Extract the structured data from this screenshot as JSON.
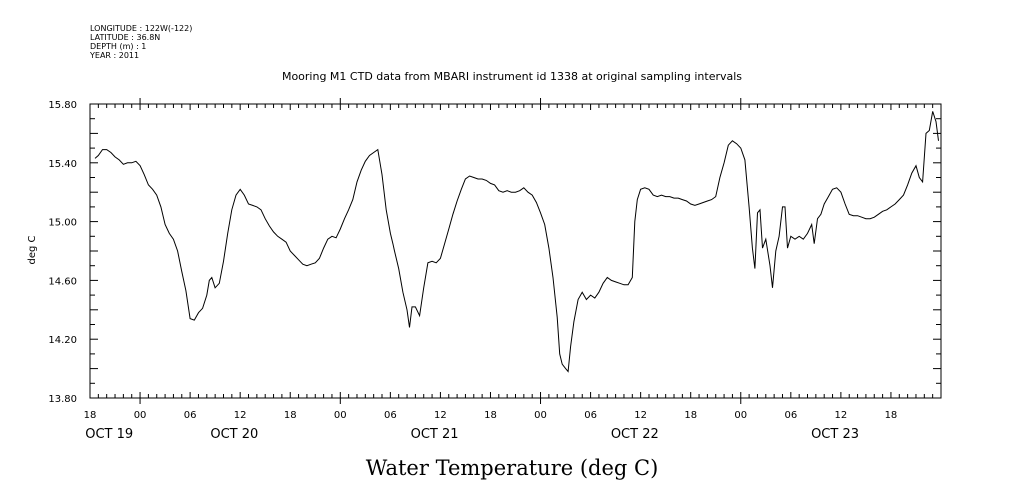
{
  "meta": {
    "longitude": "LONGITUDE : 122W(-122)",
    "latitude": "LATITUDE : 36.8N",
    "depth": "DEPTH (m) : 1",
    "year": "YEAR : 2011"
  },
  "chart_data": {
    "type": "line",
    "title": "Mooring M1 CTD data from MBARI instrument id 1338 at original sampling intervals",
    "xlabel": "Water Temperature (deg C)",
    "ylabel": "deg C",
    "ylim": [
      13.8,
      15.8
    ],
    "y_ticks": [
      "13.80",
      "14.20",
      "14.60",
      "15.00",
      "15.40",
      "15.80"
    ],
    "x_unit": "hours since OCT 18 18:00",
    "x_range": [
      0,
      102
    ],
    "hour_ticks": [
      {
        "h": 0,
        "label": "18"
      },
      {
        "h": 6,
        "label": "00"
      },
      {
        "h": 12,
        "label": "06"
      },
      {
        "h": 18,
        "label": "12"
      },
      {
        "h": 24,
        "label": "18"
      },
      {
        "h": 30,
        "label": "00"
      },
      {
        "h": 36,
        "label": "06"
      },
      {
        "h": 42,
        "label": "12"
      },
      {
        "h": 48,
        "label": "18"
      },
      {
        "h": 54,
        "label": "00"
      },
      {
        "h": 60,
        "label": "06"
      },
      {
        "h": 66,
        "label": "12"
      },
      {
        "h": 72,
        "label": "18"
      },
      {
        "h": 78,
        "label": "00"
      },
      {
        "h": 84,
        "label": "06"
      },
      {
        "h": 90,
        "label": "12"
      },
      {
        "h": 96,
        "label": "18"
      }
    ],
    "date_labels": [
      {
        "h": 2.3,
        "label": "OCT 19"
      },
      {
        "h": 17.3,
        "label": "OCT 20"
      },
      {
        "h": 41.3,
        "label": "OCT 21"
      },
      {
        "h": 65.3,
        "label": "OCT 22"
      },
      {
        "h": 89.3,
        "label": "OCT 23"
      }
    ],
    "grid": false,
    "series": [
      {
        "color": "#000000",
        "points": [
          [
            0.6,
            15.43
          ],
          [
            1.0,
            15.45
          ],
          [
            1.5,
            15.49
          ],
          [
            2.0,
            15.49
          ],
          [
            2.5,
            15.47
          ],
          [
            3.0,
            15.44
          ],
          [
            3.5,
            15.42
          ],
          [
            4.0,
            15.39
          ],
          [
            4.5,
            15.4
          ],
          [
            5.0,
            15.4
          ],
          [
            5.5,
            15.41
          ],
          [
            6.0,
            15.38
          ],
          [
            6.5,
            15.32
          ],
          [
            7.0,
            15.25
          ],
          [
            7.5,
            15.22
          ],
          [
            8.0,
            15.18
          ],
          [
            8.5,
            15.1
          ],
          [
            9.0,
            14.98
          ],
          [
            9.5,
            14.92
          ],
          [
            10.0,
            14.88
          ],
          [
            10.5,
            14.8
          ],
          [
            11.0,
            14.66
          ],
          [
            11.5,
            14.53
          ],
          [
            12.0,
            14.34
          ],
          [
            12.5,
            14.33
          ],
          [
            13.0,
            14.38
          ],
          [
            13.5,
            14.41
          ],
          [
            14.0,
            14.5
          ],
          [
            14.3,
            14.6
          ],
          [
            14.6,
            14.62
          ],
          [
            15.0,
            14.55
          ],
          [
            15.5,
            14.58
          ],
          [
            16.0,
            14.73
          ],
          [
            16.5,
            14.92
          ],
          [
            17.0,
            15.08
          ],
          [
            17.5,
            15.18
          ],
          [
            18.0,
            15.22
          ],
          [
            18.5,
            15.18
          ],
          [
            19.0,
            15.12
          ],
          [
            19.5,
            15.11
          ],
          [
            20.0,
            15.1
          ],
          [
            20.5,
            15.08
          ],
          [
            21.0,
            15.02
          ],
          [
            21.5,
            14.97
          ],
          [
            22.0,
            14.93
          ],
          [
            22.5,
            14.9
          ],
          [
            23.0,
            14.88
          ],
          [
            23.5,
            14.86
          ],
          [
            24.0,
            14.8
          ],
          [
            24.5,
            14.77
          ],
          [
            25.0,
            14.74
          ],
          [
            25.5,
            14.71
          ],
          [
            26.0,
            14.7
          ],
          [
            26.5,
            14.71
          ],
          [
            27.0,
            14.72
          ],
          [
            27.5,
            14.75
          ],
          [
            28.0,
            14.82
          ],
          [
            28.5,
            14.88
          ],
          [
            29.0,
            14.9
          ],
          [
            29.5,
            14.89
          ],
          [
            30.0,
            14.95
          ],
          [
            30.5,
            15.02
          ],
          [
            31.0,
            15.08
          ],
          [
            31.5,
            15.15
          ],
          [
            32.0,
            15.27
          ],
          [
            32.5,
            15.35
          ],
          [
            33.0,
            15.41
          ],
          [
            33.5,
            15.45
          ],
          [
            34.0,
            15.47
          ],
          [
            34.5,
            15.49
          ],
          [
            35.0,
            15.32
          ],
          [
            35.5,
            15.08
          ],
          [
            36.0,
            14.92
          ],
          [
            36.3,
            14.85
          ],
          [
            36.5,
            14.8
          ],
          [
            37.0,
            14.68
          ],
          [
            37.5,
            14.52
          ],
          [
            38.0,
            14.4
          ],
          [
            38.3,
            14.28
          ],
          [
            38.6,
            14.42
          ],
          [
            39.0,
            14.42
          ],
          [
            39.5,
            14.36
          ],
          [
            40.0,
            14.55
          ],
          [
            40.5,
            14.72
          ],
          [
            41.0,
            14.73
          ],
          [
            41.5,
            14.72
          ],
          [
            42.0,
            14.75
          ],
          [
            42.5,
            14.85
          ],
          [
            43.0,
            14.95
          ],
          [
            43.5,
            15.05
          ],
          [
            44.0,
            15.14
          ],
          [
            44.5,
            15.22
          ],
          [
            45.0,
            15.29
          ],
          [
            45.5,
            15.31
          ],
          [
            46.0,
            15.3
          ],
          [
            46.5,
            15.29
          ],
          [
            47.0,
            15.29
          ],
          [
            47.5,
            15.28
          ],
          [
            48.0,
            15.26
          ],
          [
            48.5,
            15.25
          ],
          [
            49.0,
            15.21
          ],
          [
            49.5,
            15.2
          ],
          [
            50.0,
            15.21
          ],
          [
            50.5,
            15.2
          ],
          [
            51.0,
            15.2
          ],
          [
            51.5,
            15.21
          ],
          [
            52.0,
            15.23
          ],
          [
            52.5,
            15.2
          ],
          [
            53.0,
            15.18
          ],
          [
            53.5,
            15.13
          ],
          [
            54.0,
            15.06
          ],
          [
            54.5,
            14.98
          ],
          [
            55.0,
            14.82
          ],
          [
            55.5,
            14.62
          ],
          [
            56.0,
            14.35
          ],
          [
            56.3,
            14.1
          ],
          [
            56.6,
            14.03
          ],
          [
            57.0,
            14.0
          ],
          [
            57.3,
            13.98
          ],
          [
            57.6,
            14.15
          ],
          [
            58.0,
            14.32
          ],
          [
            58.5,
            14.47
          ],
          [
            59.0,
            14.52
          ],
          [
            59.5,
            14.47
          ],
          [
            60.0,
            14.5
          ],
          [
            60.5,
            14.48
          ],
          [
            61.0,
            14.52
          ],
          [
            61.5,
            14.58
          ],
          [
            62.0,
            14.62
          ],
          [
            62.5,
            14.6
          ],
          [
            63.0,
            14.59
          ],
          [
            63.5,
            14.58
          ],
          [
            64.0,
            14.57
          ],
          [
            64.5,
            14.57
          ],
          [
            65.0,
            14.62
          ],
          [
            65.3,
            15.0
          ],
          [
            65.6,
            15.15
          ],
          [
            66.0,
            15.22
          ],
          [
            66.5,
            15.23
          ],
          [
            67.0,
            15.22
          ],
          [
            67.5,
            15.18
          ],
          [
            68.0,
            15.17
          ],
          [
            68.5,
            15.18
          ],
          [
            69.0,
            15.17
          ],
          [
            69.5,
            15.17
          ],
          [
            70.0,
            15.16
          ],
          [
            70.5,
            15.16
          ],
          [
            71.0,
            15.15
          ],
          [
            71.5,
            15.14
          ],
          [
            72.0,
            15.12
          ],
          [
            72.5,
            15.11
          ],
          [
            73.0,
            15.12
          ],
          [
            73.5,
            15.13
          ],
          [
            74.0,
            15.14
          ],
          [
            74.5,
            15.15
          ],
          [
            75.0,
            15.17
          ],
          [
            75.5,
            15.3
          ],
          [
            76.0,
            15.4
          ],
          [
            76.5,
            15.52
          ],
          [
            77.0,
            15.55
          ],
          [
            77.5,
            15.53
          ],
          [
            78.0,
            15.5
          ],
          [
            78.5,
            15.42
          ],
          [
            79.0,
            15.1
          ],
          [
            79.4,
            14.82
          ],
          [
            79.7,
            14.68
          ],
          [
            80.0,
            15.06
          ],
          [
            80.3,
            15.08
          ],
          [
            80.6,
            14.82
          ],
          [
            81.0,
            14.88
          ],
          [
            81.5,
            14.7
          ],
          [
            81.8,
            14.55
          ],
          [
            82.2,
            14.8
          ],
          [
            82.6,
            14.9
          ],
          [
            83.0,
            15.1
          ],
          [
            83.3,
            15.1
          ],
          [
            83.6,
            14.82
          ],
          [
            84.0,
            14.9
          ],
          [
            84.5,
            14.88
          ],
          [
            85.0,
            14.9
          ],
          [
            85.5,
            14.88
          ],
          [
            86.0,
            14.92
          ],
          [
            86.5,
            14.98
          ],
          [
            86.8,
            14.85
          ],
          [
            87.2,
            15.02
          ],
          [
            87.6,
            15.05
          ],
          [
            88.0,
            15.12
          ],
          [
            88.5,
            15.17
          ],
          [
            89.0,
            15.22
          ],
          [
            89.5,
            15.23
          ],
          [
            90.0,
            15.2
          ],
          [
            90.5,
            15.12
          ],
          [
            91.0,
            15.05
          ],
          [
            91.5,
            15.04
          ],
          [
            92.0,
            15.04
          ],
          [
            92.5,
            15.03
          ],
          [
            93.0,
            15.02
          ],
          [
            93.5,
            15.02
          ],
          [
            94.0,
            15.03
          ],
          [
            94.5,
            15.05
          ],
          [
            95.0,
            15.07
          ],
          [
            95.5,
            15.08
          ],
          [
            96.0,
            15.1
          ],
          [
            96.5,
            15.12
          ],
          [
            97.0,
            15.15
          ],
          [
            97.5,
            15.18
          ],
          [
            98.0,
            15.25
          ],
          [
            98.5,
            15.33
          ],
          [
            99.0,
            15.38
          ],
          [
            99.4,
            15.3
          ],
          [
            99.8,
            15.27
          ],
          [
            100.2,
            15.6
          ],
          [
            100.6,
            15.62
          ],
          [
            101.0,
            15.75
          ],
          [
            101.4,
            15.68
          ],
          [
            101.7,
            15.55
          ]
        ]
      }
    ]
  }
}
